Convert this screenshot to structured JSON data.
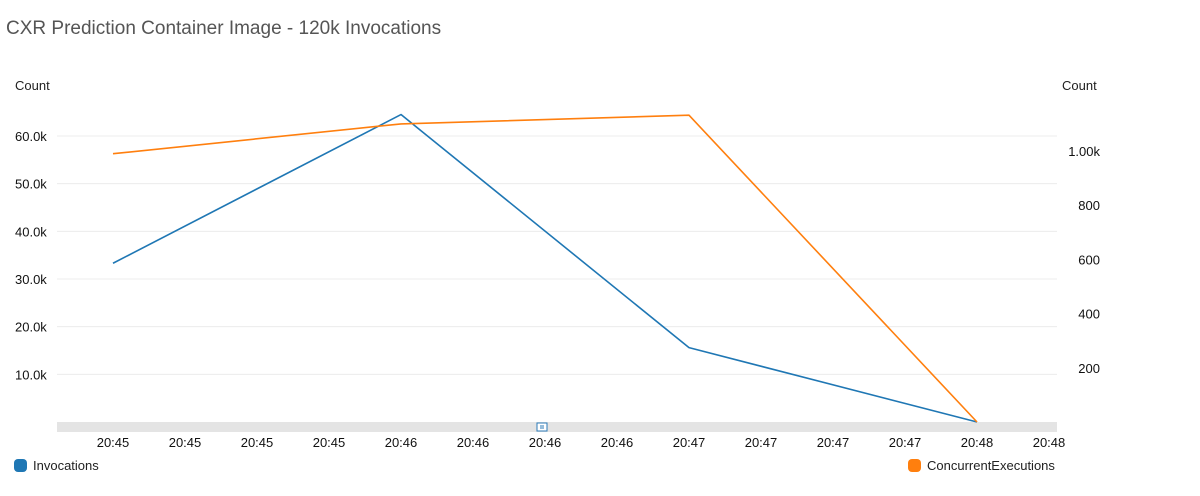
{
  "title": "CXR Prediction Container Image - 120k Invocations",
  "chart_data": {
    "type": "line",
    "title": "CXR Prediction Container Image - 120k Invocations",
    "x_ticks": [
      "20:45",
      "20:45",
      "20:45",
      "20:45",
      "20:46",
      "20:46",
      "20:46",
      "20:46",
      "20:47",
      "20:47",
      "20:47",
      "20:47",
      "20:48",
      "20:48"
    ],
    "left_axis": {
      "label": "Count",
      "ticks": [
        "10.0k",
        "20.0k",
        "30.0k",
        "40.0k",
        "50.0k",
        "60.0k"
      ],
      "tick_values": [
        10000,
        20000,
        30000,
        40000,
        50000,
        60000
      ],
      "range": [
        0,
        70000
      ]
    },
    "right_axis": {
      "label": "Count",
      "ticks": [
        "200",
        "400",
        "600",
        "800",
        "1.00k"
      ],
      "tick_values": [
        200,
        400,
        600,
        800,
        1000
      ],
      "range": [
        0,
        1200
      ]
    },
    "series": [
      {
        "name": "Invocations",
        "axis": "left",
        "color": "#1f77b4",
        "x_index": [
          0,
          4,
          8,
          12
        ],
        "values": [
          33300,
          64500,
          15600,
          0
        ]
      },
      {
        "name": "ConcurrentExecutions",
        "axis": "right",
        "color": "#ff7f0e",
        "x_index": [
          0,
          4,
          8,
          12
        ],
        "values": [
          990,
          1100,
          1132,
          0
        ]
      }
    ],
    "grid": true,
    "legend_position": "bottom"
  },
  "legend": {
    "invocations": "Invocations",
    "concurrent": "ConcurrentExecutions"
  }
}
